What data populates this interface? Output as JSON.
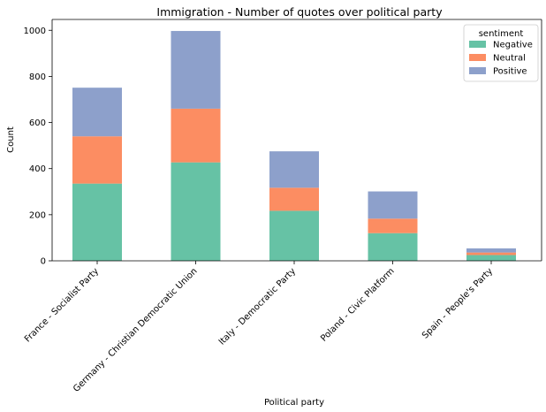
{
  "chart_data": {
    "type": "bar",
    "stacked": true,
    "title": "Immigration - Number of quotes over political party",
    "xlabel": "Political party",
    "ylabel": "Count",
    "categories": [
      "France - Socialist Party",
      "Germany - Christian Democratic Union",
      "Italy - Democratic Party",
      "Poland - Civic Platform",
      "Spain - People's Party"
    ],
    "series": [
      {
        "name": "Negative",
        "color": "#66c2a5",
        "values": [
          335,
          427,
          217,
          120,
          25
        ]
      },
      {
        "name": "Neutral",
        "color": "#fc8d62",
        "values": [
          205,
          233,
          100,
          63,
          11
        ]
      },
      {
        "name": "Positive",
        "color": "#8da0cb",
        "values": [
          211,
          337,
          158,
          118,
          18
        ]
      }
    ],
    "ylim": [
      0,
      1047
    ],
    "yticks": [
      0,
      200,
      400,
      600,
      800,
      1000
    ],
    "grid": false,
    "legend": {
      "title": "sentiment",
      "position": "top-right"
    }
  }
}
